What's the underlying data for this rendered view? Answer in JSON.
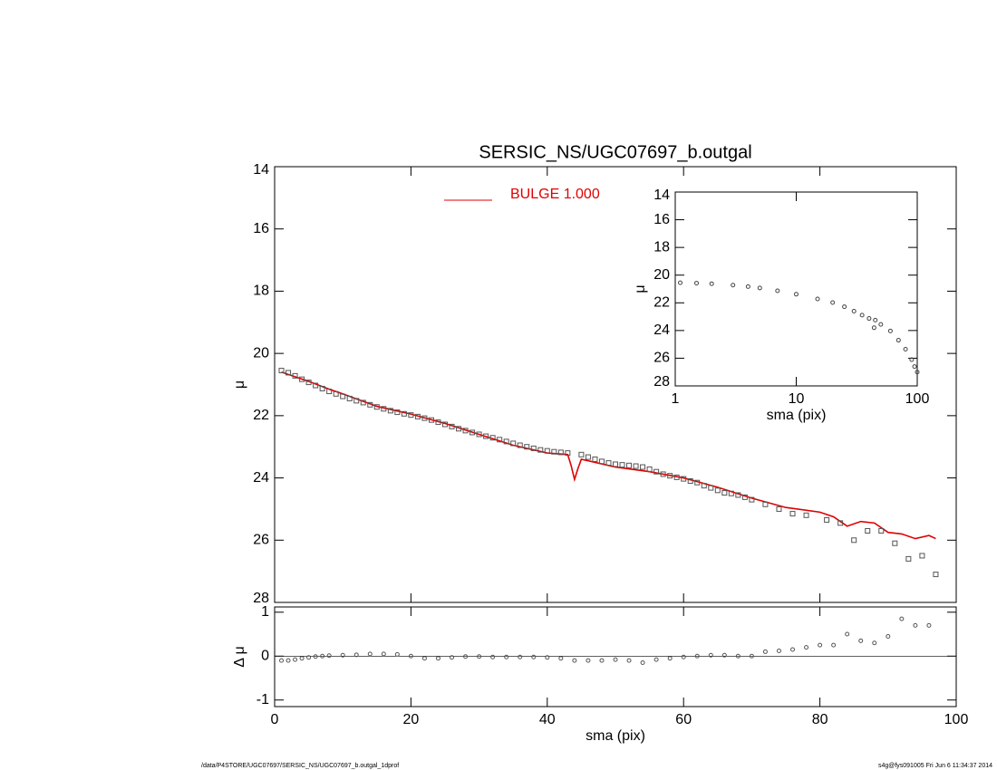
{
  "footer_left": "/data/P4STORE/UGC07697/SERSIC_NS/UGC07697_b.outgal_1dprof",
  "footer_right": "s4g@fys091005  Fri Jun  6 11:34:37 2014",
  "chart_data": [
    {
      "type": "scatter",
      "title": "SERSIC_NS/UGC07697_b.outgal",
      "ylabel": "μ",
      "xlim": [
        0,
        100
      ],
      "ylim": [
        14,
        28
      ],
      "y_inverted": true,
      "yticks": [
        14,
        16,
        18,
        20,
        22,
        24,
        26,
        28
      ],
      "series": [
        {
          "name": "BULGE  1.000",
          "color": "#e00000",
          "style": "line",
          "x": [
            1,
            3,
            5,
            8,
            10,
            15,
            20,
            25,
            30,
            35,
            40,
            43,
            43.5,
            44,
            44.5,
            45,
            50,
            55,
            60,
            65,
            70,
            75,
            80,
            82,
            84,
            86,
            88,
            90,
            92,
            94,
            96,
            97
          ],
          "values": [
            20.6,
            20.75,
            20.9,
            21.15,
            21.3,
            21.7,
            21.95,
            22.25,
            22.6,
            22.95,
            23.2,
            23.25,
            23.6,
            24.05,
            23.7,
            23.4,
            23.65,
            23.8,
            24.0,
            24.3,
            24.65,
            24.95,
            25.1,
            25.25,
            25.55,
            25.4,
            25.45,
            25.75,
            25.8,
            25.95,
            25.85,
            25.95
          ]
        },
        {
          "color": "#555555",
          "style": "square",
          "x": [
            1,
            2,
            3,
            4,
            5,
            6,
            7,
            8,
            9,
            10,
            11,
            12,
            13,
            14,
            15,
            16,
            17,
            18,
            19,
            20,
            21,
            22,
            23,
            24,
            25,
            26,
            27,
            28,
            29,
            30,
            31,
            32,
            33,
            34,
            35,
            36,
            37,
            38,
            39,
            40,
            41,
            42,
            43,
            45,
            46,
            47,
            48,
            49,
            50,
            51,
            52,
            53,
            54,
            55,
            56,
            57,
            58,
            59,
            60,
            61,
            62,
            63,
            64,
            65,
            66,
            67,
            68,
            69,
            70,
            72,
            74,
            76,
            78,
            81,
            83,
            85,
            87,
            89,
            91,
            93,
            95,
            97
          ],
          "values": [
            20.55,
            20.62,
            20.72,
            20.83,
            20.93,
            21.03,
            21.13,
            21.22,
            21.3,
            21.38,
            21.45,
            21.52,
            21.58,
            21.65,
            21.72,
            21.78,
            21.84,
            21.89,
            21.94,
            21.98,
            22.03,
            22.08,
            22.14,
            22.21,
            22.28,
            22.35,
            22.42,
            22.48,
            22.54,
            22.6,
            22.66,
            22.71,
            22.77,
            22.83,
            22.89,
            22.95,
            23.0,
            23.05,
            23.1,
            23.13,
            23.16,
            23.18,
            23.2,
            23.25,
            23.33,
            23.4,
            23.47,
            23.52,
            23.56,
            23.58,
            23.6,
            23.62,
            23.65,
            23.72,
            23.8,
            23.88,
            23.93,
            23.98,
            24.03,
            24.1,
            24.15,
            24.25,
            24.32,
            24.4,
            24.48,
            24.5,
            24.55,
            24.62,
            24.7,
            24.85,
            25.0,
            25.15,
            25.2,
            25.35,
            25.45,
            26.0,
            25.7,
            25.7,
            26.1,
            26.6,
            26.5,
            27.1
          ]
        }
      ]
    },
    {
      "type": "scatter",
      "xlabel": "sma (pix)",
      "ylabel": "Δ μ",
      "xlim": [
        0,
        100
      ],
      "xticks": [
        0,
        20,
        40,
        60,
        80,
        100
      ],
      "ylim": [
        -1.15,
        1.12
      ],
      "yticks": [
        -1,
        0,
        1
      ],
      "series": [
        {
          "color": "#555555",
          "style": "circle",
          "x": [
            1,
            2,
            3,
            4,
            5,
            6,
            7,
            8,
            10,
            12,
            14,
            16,
            18,
            20,
            22,
            24,
            26,
            28,
            30,
            32,
            34,
            36,
            38,
            40,
            42,
            44,
            46,
            48,
            50,
            52,
            54,
            56,
            58,
            60,
            62,
            64,
            66,
            68,
            70,
            72,
            74,
            76,
            78,
            80,
            82,
            84,
            86,
            88,
            90,
            92,
            94,
            96
          ],
          "values": [
            -0.1,
            -0.1,
            -0.08,
            -0.05,
            -0.03,
            -0.01,
            0.0,
            0.01,
            0.02,
            0.03,
            0.05,
            0.05,
            0.04,
            0.0,
            -0.05,
            -0.05,
            -0.03,
            -0.01,
            -0.01,
            -0.02,
            -0.02,
            -0.02,
            -0.02,
            -0.03,
            -0.05,
            -0.1,
            -0.1,
            -0.1,
            -0.08,
            -0.1,
            -0.15,
            -0.08,
            -0.05,
            -0.02,
            0.0,
            0.02,
            0.02,
            0.0,
            0.0,
            0.1,
            0.12,
            0.15,
            0.2,
            0.25,
            0.25,
            0.5,
            0.35,
            0.3,
            0.45,
            0.85,
            0.7,
            0.7
          ]
        }
      ]
    },
    {
      "type": "scatter",
      "xlabel": "sma (pix)",
      "ylabel": "μ",
      "xscale": "log",
      "xlim": [
        1,
        100
      ],
      "xticks": [
        1,
        10,
        100
      ],
      "ylim": [
        14,
        28
      ],
      "y_inverted": true,
      "yticks": [
        14,
        16,
        18,
        20,
        22,
        24,
        26,
        28
      ],
      "series": [
        {
          "color": "#444444",
          "style": "circle",
          "x": [
            1.1,
            1.5,
            2,
            3,
            4,
            5,
            7,
            10,
            15,
            20,
            25,
            30,
            35,
            40,
            44,
            45,
            50,
            60,
            70,
            80,
            90,
            95,
            100
          ],
          "values": [
            20.55,
            20.58,
            20.62,
            20.72,
            20.83,
            20.93,
            21.13,
            21.38,
            21.72,
            21.98,
            22.28,
            22.6,
            22.89,
            23.13,
            23.8,
            23.25,
            23.56,
            24.03,
            24.7,
            25.35,
            26.1,
            26.6,
            27.0
          ]
        }
      ]
    }
  ]
}
